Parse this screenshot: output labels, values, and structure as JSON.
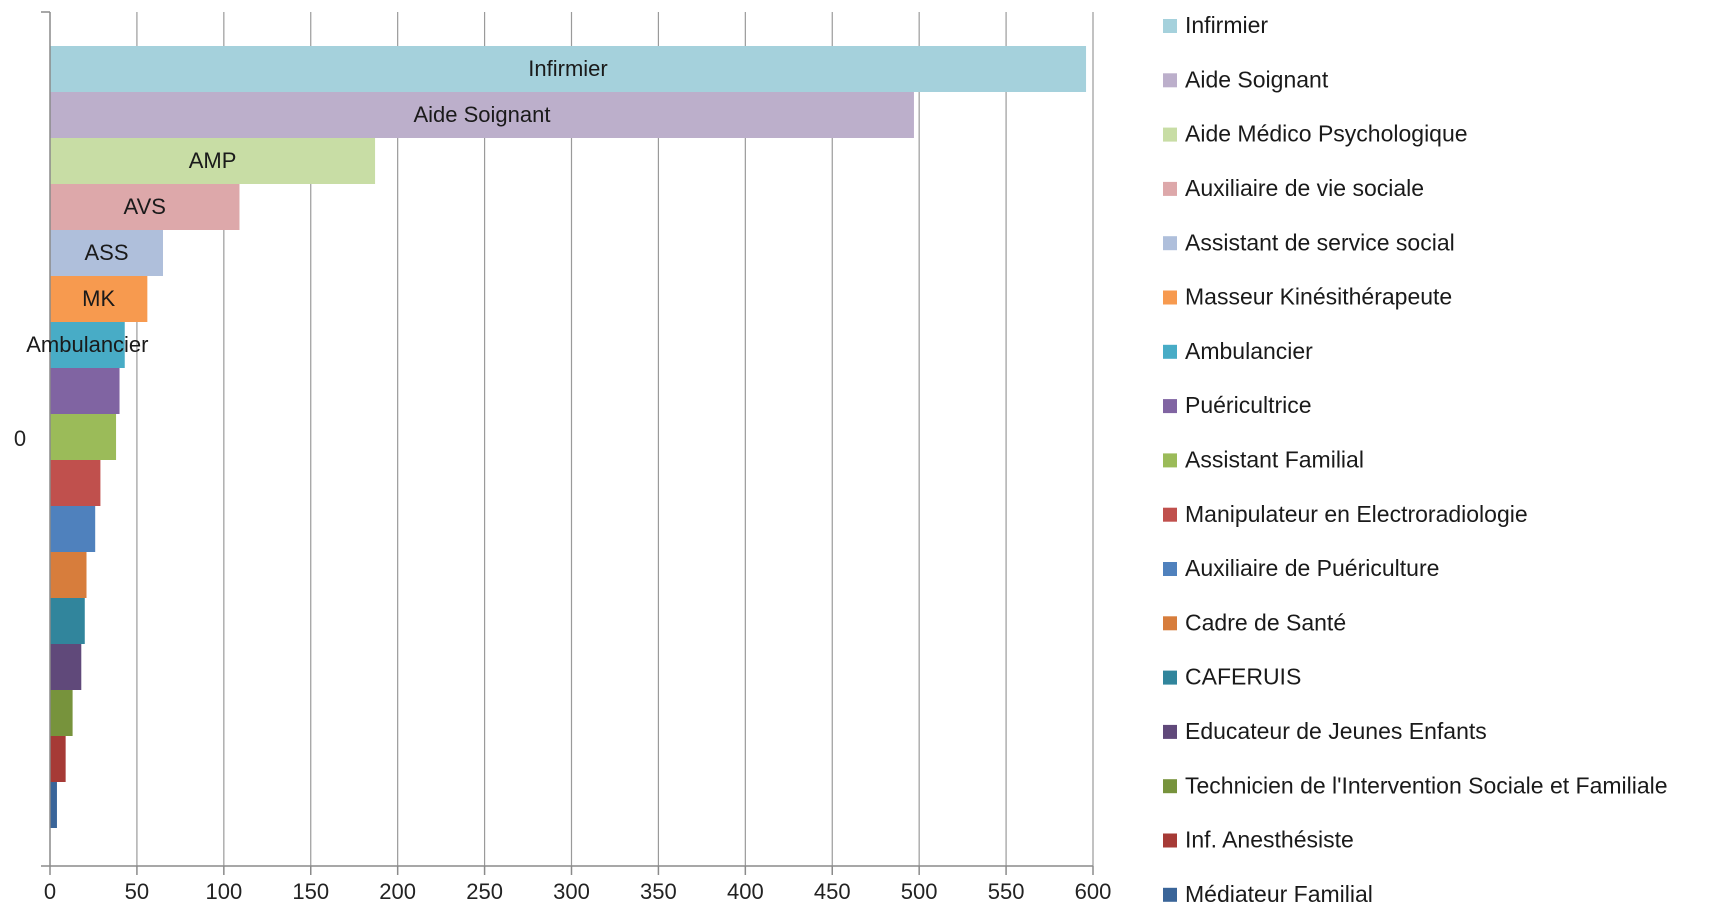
{
  "chart_data": {
    "type": "bar",
    "orientation": "horizontal",
    "title": "",
    "xlabel": "",
    "ylabel": "",
    "category_label": "0",
    "xlim": [
      0,
      600
    ],
    "xticks": [
      0,
      50,
      100,
      150,
      200,
      250,
      300,
      350,
      400,
      450,
      500,
      550,
      600
    ],
    "grid": "vertical",
    "legend_position": "right",
    "series": [
      {
        "name": "Infirmier",
        "value": 596,
        "label": "Infirmier",
        "color": "#A5D1DC"
      },
      {
        "name": "Aide Soignant",
        "value": 497,
        "label": "Aide Soignant",
        "color": "#BCAFCB"
      },
      {
        "name": "Aide Médico Psychologique",
        "value": 187,
        "label": "AMP",
        "color": "#C8DDA5"
      },
      {
        "name": "Auxiliaire de vie sociale",
        "value": 109,
        "label": "AVS",
        "color": "#DDA8AA"
      },
      {
        "name": "Assistant de service social",
        "value": 65,
        "label": "ASS",
        "color": "#AFBFDB"
      },
      {
        "name": "Masseur Kinésithérapeute",
        "value": 56,
        "label": "MK",
        "color": "#F79A4F"
      },
      {
        "name": "Ambulancier",
        "value": 43,
        "label": "Ambulancier",
        "color": "#48ACC6"
      },
      {
        "name": "Puéricultrice",
        "value": 40,
        "label": "",
        "color": "#8064A2"
      },
      {
        "name": "Assistant Familial",
        "value": 38,
        "label": "",
        "color": "#9BBB59"
      },
      {
        "name": "Manipulateur en Electroradiologie",
        "value": 29,
        "label": "",
        "color": "#C0504D"
      },
      {
        "name": "Auxiliaire de Puériculture",
        "value": 26,
        "label": "",
        "color": "#4F81BD"
      },
      {
        "name": "Cadre de Santé",
        "value": 21,
        "label": "",
        "color": "#D77D3C"
      },
      {
        "name": "CAFERUIS",
        "value": 20,
        "label": "",
        "color": "#31859C"
      },
      {
        "name": "Educateur de Jeunes Enfants",
        "value": 18,
        "label": "",
        "color": "#60497A"
      },
      {
        "name": "Technicien de l'Intervention Sociale et Familiale",
        "value": 13,
        "label": "",
        "color": "#77933C"
      },
      {
        "name": "Inf. Anesthésiste",
        "value": 9,
        "label": "",
        "color": "#A63A36"
      },
      {
        "name": "Médiateur Familial",
        "value": 4,
        "label": "",
        "color": "#3A6599"
      }
    ]
  }
}
